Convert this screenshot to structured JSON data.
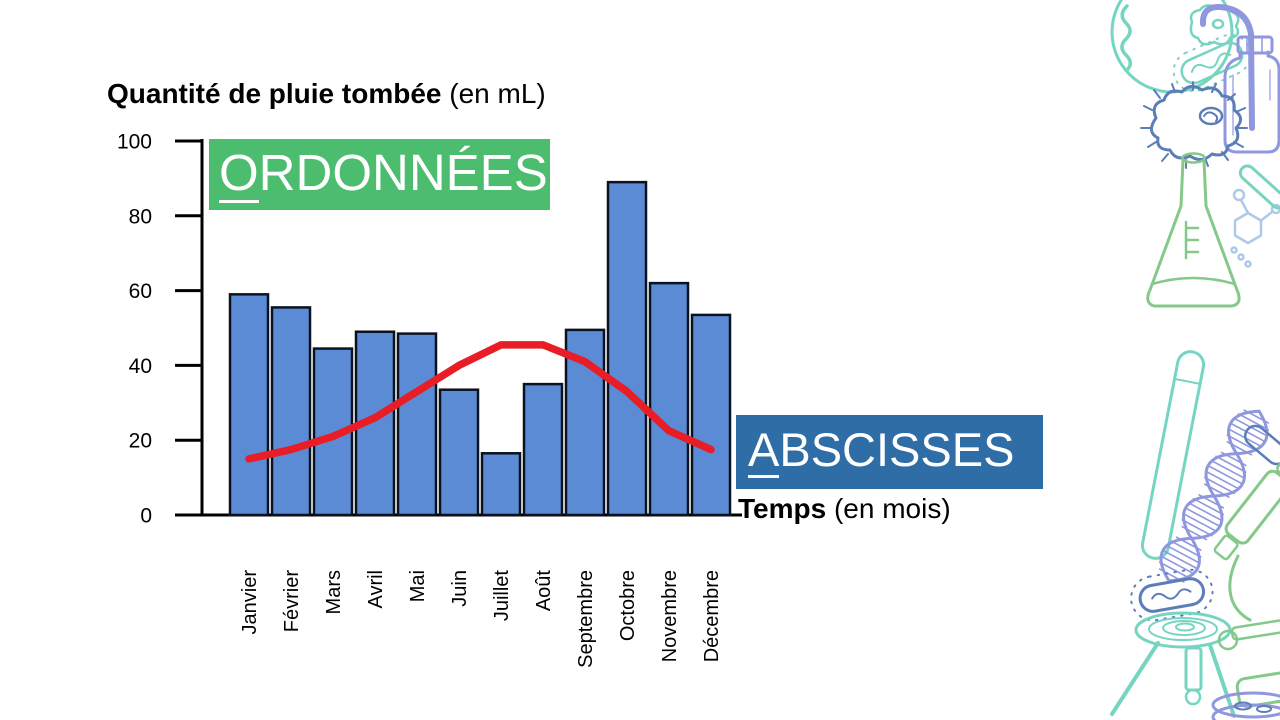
{
  "slide": {
    "title": {
      "text_bold": "Quantité de pluie tombée",
      "text_unit": " (en mL)"
    },
    "x_axis_label": {
      "text_bold": "Temps",
      "text_unit": " (en mois)"
    }
  },
  "annotations": {
    "ordonnees": {
      "first_letter": "O",
      "rest": "RDONNÉES",
      "bg_color": "#4cbd6f",
      "text_color": "#ffffff"
    },
    "abscisses": {
      "first_letter": "A",
      "rest": "BSCISSES",
      "bg_color": "#2e6da6",
      "text_color": "#ffffff"
    }
  },
  "chart_data": {
    "type": "bar",
    "title": "Quantité de pluie tombée (en mL)",
    "xlabel": "Temps (en mois)",
    "ylabel": "Quantité de pluie tombée (en mL)",
    "categories": [
      "Janvier",
      "Février",
      "Mars",
      "Avril",
      "Mai",
      "Juin",
      "Juillet",
      "Août",
      "Septembre",
      "Octobre",
      "Novembre",
      "Décembre"
    ],
    "series": [
      {
        "name": "barres-pluie",
        "type": "bar",
        "color": "#5b8bd5",
        "values": [
          59,
          55.5,
          44.5,
          49,
          48.5,
          33.5,
          16.5,
          35,
          49.5,
          89,
          62,
          53.5
        ]
      },
      {
        "name": "courbe-rouge",
        "type": "line",
        "color": "#e81d25",
        "values": [
          15,
          17.5,
          21,
          26,
          33,
          40,
          45.5,
          45.5,
          41,
          33,
          22.5,
          17.5
        ]
      }
    ],
    "ylim": [
      0,
      100
    ],
    "yticks": [
      0,
      20,
      40,
      60,
      80,
      100
    ],
    "grid": false,
    "legend": false
  },
  "colors": {
    "bar_fill": "#5b8bd5",
    "bar_border": "#0c1320",
    "line_red": "#e81d25",
    "axis": "#000000",
    "background": "#ffffff",
    "decor_teal": "#76d5c0",
    "decor_periwinkle": "#8f97de",
    "decor_green": "#85c98a",
    "decor_blue": "#5b7db8",
    "decor_lightblue": "#aec8ea"
  },
  "decor_icons": [
    "petri-dish",
    "microbe-squiggle",
    "amoeba-small",
    "bacterium-capsule",
    "wash-bottle",
    "amoeba",
    "erlenmeyer-flask",
    "molecule",
    "pipette",
    "test-tube",
    "dna-helix",
    "bacterium",
    "lab-stool",
    "microscope",
    "petri-dish-stack"
  ]
}
